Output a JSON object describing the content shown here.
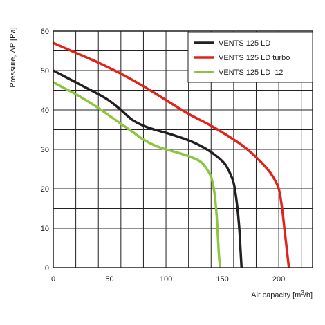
{
  "chart_data": {
    "type": "line",
    "title": "",
    "xlabel": "Air capacity [m",
    "xlabel_sup": "3",
    "xlabel_suffix": "/h]",
    "ylabel": "Pressure, ΔP [Pa]",
    "xlim": [
      0,
      230
    ],
    "ylim": [
      0,
      60
    ],
    "x_ticks": [
      0,
      50,
      100,
      150,
      200
    ],
    "y_ticks": [
      0,
      10,
      20,
      30,
      40,
      50,
      60
    ],
    "x_grid_step": 20,
    "y_grid_step": 10,
    "grid": true,
    "legend_position": "top-right",
    "series": [
      {
        "name": "VENTS 125 LD",
        "color": "#231f20",
        "points": [
          [
            0,
            50
          ],
          [
            10,
            48.5
          ],
          [
            20,
            47
          ],
          [
            30,
            45.5
          ],
          [
            40,
            44
          ],
          [
            50,
            42.3
          ],
          [
            60,
            40
          ],
          [
            70,
            37.5
          ],
          [
            80,
            36
          ],
          [
            90,
            35
          ],
          [
            100,
            34.2
          ],
          [
            110,
            33.3
          ],
          [
            120,
            32.3
          ],
          [
            130,
            31
          ],
          [
            140,
            29.3
          ],
          [
            150,
            27
          ],
          [
            155,
            25
          ],
          [
            160,
            21.5
          ],
          [
            163,
            16
          ],
          [
            165,
            10
          ],
          [
            166,
            5
          ],
          [
            167,
            0
          ]
        ]
      },
      {
        "name": "VENTS 125 LD turbo",
        "color": "#e2231a",
        "points": [
          [
            0,
            57
          ],
          [
            20,
            54.5
          ],
          [
            40,
            52
          ],
          [
            60,
            49.2
          ],
          [
            80,
            46
          ],
          [
            100,
            42.5
          ],
          [
            120,
            39
          ],
          [
            140,
            36
          ],
          [
            160,
            32.5
          ],
          [
            170,
            30.5
          ],
          [
            180,
            28
          ],
          [
            190,
            25
          ],
          [
            195,
            23
          ],
          [
            200,
            20
          ],
          [
            203,
            15
          ],
          [
            205,
            10
          ],
          [
            207,
            5
          ],
          [
            209,
            0
          ]
        ]
      },
      {
        "name": "VENTS 125 LD  12",
        "color": "#8cc63f",
        "points": [
          [
            0,
            47
          ],
          [
            10,
            45.5
          ],
          [
            20,
            44
          ],
          [
            30,
            42.3
          ],
          [
            40,
            40.5
          ],
          [
            50,
            38.5
          ],
          [
            60,
            36.5
          ],
          [
            70,
            34.5
          ],
          [
            80,
            32.5
          ],
          [
            90,
            31
          ],
          [
            100,
            30
          ],
          [
            110,
            29.2
          ],
          [
            120,
            28.3
          ],
          [
            130,
            27
          ],
          [
            135,
            25.5
          ],
          [
            140,
            23
          ],
          [
            143,
            19
          ],
          [
            145,
            13
          ],
          [
            146,
            8
          ],
          [
            147,
            3
          ],
          [
            148,
            0
          ]
        ]
      }
    ]
  }
}
